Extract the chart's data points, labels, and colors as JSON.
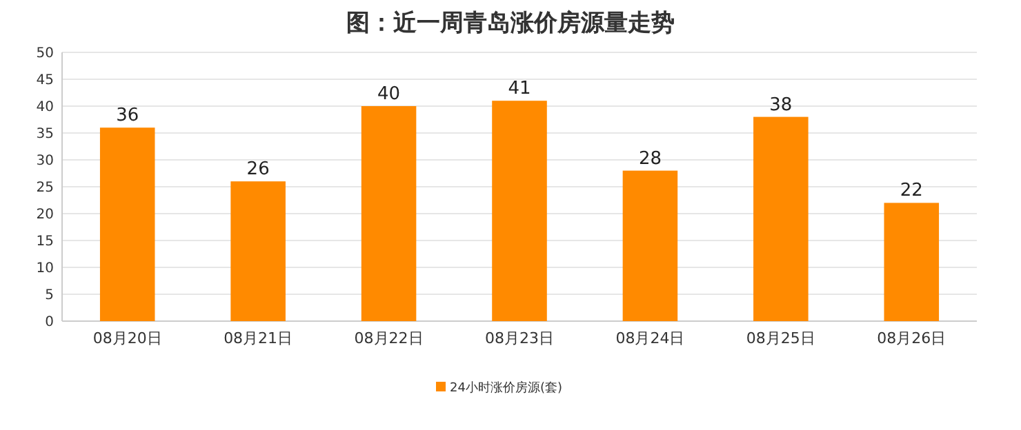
{
  "chart_data": {
    "type": "bar",
    "title": "图：近一周青岛涨价房源量走势",
    "categories": [
      "08月20日",
      "08月21日",
      "08月22日",
      "08月23日",
      "08月24日",
      "08月25日",
      "08月26日"
    ],
    "series": [
      {
        "name": "24小时涨价房源(套)",
        "color": "#ff8a00",
        "values": [
          36,
          26,
          40,
          41,
          28,
          38,
          22
        ]
      }
    ],
    "ylim": [
      0,
      50
    ],
    "yticks": [
      0,
      5,
      10,
      15,
      20,
      25,
      30,
      35,
      40,
      45,
      50
    ],
    "grid": "y",
    "data_labels": true,
    "legend": "bottom"
  }
}
